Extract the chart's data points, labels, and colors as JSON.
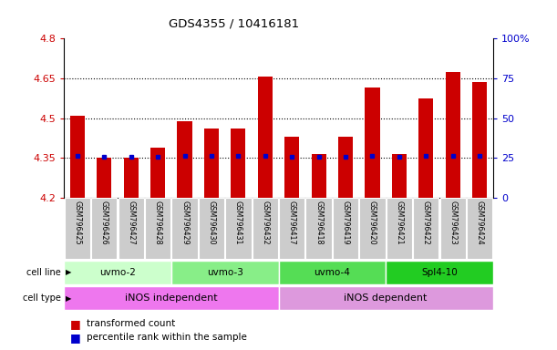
{
  "title": "GDS4355 / 10416181",
  "samples": [
    "GSM796425",
    "GSM796426",
    "GSM796427",
    "GSM796428",
    "GSM796429",
    "GSM796430",
    "GSM796431",
    "GSM796432",
    "GSM796417",
    "GSM796418",
    "GSM796419",
    "GSM796420",
    "GSM796421",
    "GSM796422",
    "GSM796423",
    "GSM796424"
  ],
  "transformed_count": [
    4.51,
    4.35,
    4.35,
    4.39,
    4.49,
    4.46,
    4.46,
    4.655,
    4.43,
    4.365,
    4.43,
    4.615,
    4.365,
    4.575,
    4.675,
    4.635
  ],
  "percentile_rank_y": [
    4.358,
    4.354,
    4.354,
    4.354,
    4.358,
    4.358,
    4.358,
    4.358,
    4.354,
    4.354,
    4.354,
    4.358,
    4.354,
    4.358,
    4.358,
    4.358
  ],
  "ylim": [
    4.2,
    4.8
  ],
  "y_ticks": [
    4.2,
    4.35,
    4.5,
    4.65,
    4.8
  ],
  "y_tick_labels": [
    "4.2",
    "4.35",
    "4.5",
    "4.65",
    "4.8"
  ],
  "y2_ticks": [
    0,
    25,
    50,
    75,
    100
  ],
  "y2_tick_labels": [
    "0",
    "25",
    "50",
    "75",
    "100%"
  ],
  "dotted_lines": [
    4.35,
    4.5,
    4.65
  ],
  "bar_color": "#cc0000",
  "dot_color": "#0000cc",
  "cell_lines": [
    {
      "label": "uvmo-2",
      "start": 0,
      "end": 4,
      "color": "#ccffcc"
    },
    {
      "label": "uvmo-3",
      "start": 4,
      "end": 8,
      "color": "#88ee88"
    },
    {
      "label": "uvmo-4",
      "start": 8,
      "end": 12,
      "color": "#55dd55"
    },
    {
      "label": "Spl4-10",
      "start": 12,
      "end": 16,
      "color": "#22cc22"
    }
  ],
  "cell_types": [
    {
      "label": "iNOS independent",
      "start": 0,
      "end": 8,
      "color": "#ee77ee"
    },
    {
      "label": "iNOS dependent",
      "start": 8,
      "end": 16,
      "color": "#dd99dd"
    }
  ],
  "legend_items": [
    {
      "color": "#cc0000",
      "label": "transformed count"
    },
    {
      "color": "#0000cc",
      "label": "percentile rank within the sample"
    }
  ],
  "axis_color_left": "#cc0000",
  "axis_color_right": "#0000cc",
  "bg_color": "#ffffff",
  "sample_bg_color": "#cccccc"
}
